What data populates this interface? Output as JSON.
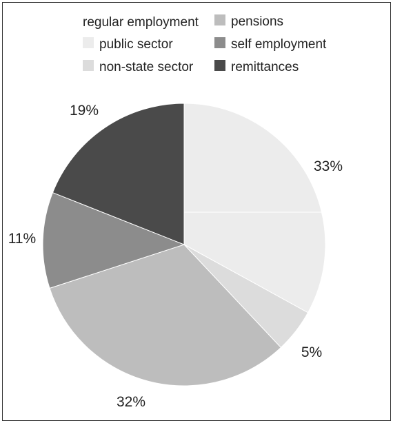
{
  "chart_data": {
    "type": "pie",
    "title": "",
    "legend": {
      "placement": "top",
      "heading": "regular employment",
      "entries": [
        {
          "label": "public sector",
          "color": "#ececec"
        },
        {
          "label": "non-state sector",
          "color": "#dcdcdc"
        },
        {
          "label": "pensions",
          "color": "#bdbdbd"
        },
        {
          "label": "self employment",
          "color": "#8c8c8c"
        },
        {
          "label": "remittances",
          "color": "#4a4a4a"
        }
      ]
    },
    "slices": [
      {
        "label": "public sector",
        "value": 33,
        "data_label": "33%",
        "color": "#ececec"
      },
      {
        "label": "non-state sector",
        "value": 5,
        "data_label": "5%",
        "color": "#dcdcdc"
      },
      {
        "label": "pensions",
        "value": 32,
        "data_label": "32%",
        "color": "#bdbdbd"
      },
      {
        "label": "self employment",
        "value": 11,
        "data_label": "11%",
        "color": "#8c8c8c"
      },
      {
        "label": "remittances",
        "value": 19,
        "data_label": "19%",
        "color": "#4a4a4a"
      }
    ],
    "start_angle_deg": 0,
    "direction": "clockwise"
  }
}
